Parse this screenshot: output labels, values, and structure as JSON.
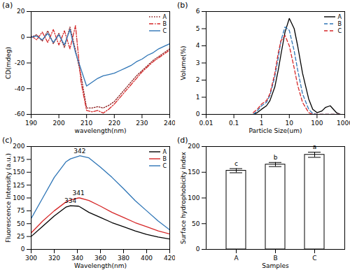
{
  "chart_data": [
    {
      "type": "line",
      "title": "(a)",
      "x_label": "wavelength(nm)",
      "y_label": "CD(mdeg)",
      "xlim": [
        190,
        240
      ],
      "xticks": [
        190,
        200,
        210,
        220,
        230,
        240
      ],
      "ylim": [
        -60,
        20
      ],
      "yticks": [
        -60,
        -40,
        -20,
        0,
        20
      ],
      "legend": "top-right",
      "x": [
        190,
        192,
        194,
        196,
        198,
        200,
        202,
        204,
        206,
        208,
        210,
        212,
        214,
        216,
        218,
        220,
        222,
        224,
        226,
        228,
        230,
        232,
        234,
        236,
        238,
        240
      ],
      "series": [
        {
          "name": "A",
          "color": "#8b1a1a",
          "line_style": "dotted",
          "values": [
            0,
            2,
            -3,
            5,
            -5,
            3,
            -8,
            8,
            -10,
            -30,
            -55,
            -55,
            -54,
            -55,
            -53,
            -50,
            -45,
            -40,
            -35,
            -30,
            -26,
            -22,
            -18,
            -15,
            -12,
            -9
          ]
        },
        {
          "name": "B",
          "color": "#d62728",
          "line_style": "dashdot",
          "values": [
            1,
            -2,
            4,
            -4,
            6,
            -6,
            5,
            -9,
            9,
            -35,
            -57,
            -58,
            -57,
            -59,
            -56,
            -52,
            -47,
            -42,
            -37,
            -32,
            -27,
            -23,
            -19,
            -16,
            -13,
            -10
          ]
        },
        {
          "name": "C",
          "color": "#2e75b6",
          "line_style": "solid",
          "values": [
            0,
            1,
            -2,
            3,
            -4,
            2,
            -6,
            6,
            -12,
            -25,
            -38,
            -35,
            -32,
            -30,
            -29,
            -28,
            -26,
            -24,
            -22,
            -19,
            -17,
            -14,
            -12,
            -9,
            -7,
            -5
          ]
        }
      ]
    },
    {
      "type": "line",
      "title": "(b)",
      "x_label": "Particle Size(um)",
      "y_label": "Volume(%)",
      "log": "x",
      "xlim": [
        0.01,
        1000
      ],
      "xticks": [
        0.01,
        0.1,
        1,
        10,
        100,
        1000
      ],
      "ylim": [
        0,
        6
      ],
      "yticks": [
        0,
        1,
        2,
        3,
        4,
        5,
        6
      ],
      "legend": "top-right",
      "x": [
        0.5,
        0.7,
        1,
        1.5,
        2,
        3,
        4,
        5,
        7,
        10,
        15,
        20,
        30,
        50,
        70,
        100,
        150,
        200,
        300,
        500,
        700
      ],
      "series": [
        {
          "name": "A",
          "color": "#000000",
          "line_style": "solid",
          "values": [
            0,
            0.1,
            0.3,
            0.5,
            0.8,
            1.6,
            2.6,
            3.5,
            4.8,
            5.6,
            5.0,
            4.0,
            2.4,
            0.9,
            0.3,
            0.1,
            0.2,
            0.4,
            0.5,
            0.1,
            0
          ]
        },
        {
          "name": "B",
          "color": "#2e75b6",
          "line_style": "dashed",
          "values": [
            0,
            0.2,
            0.5,
            0.7,
            1.1,
            2.2,
            3.3,
            4.3,
            5.1,
            4.9,
            3.7,
            2.6,
            1.2,
            0.3,
            0.05,
            0,
            0,
            0,
            0,
            0,
            0
          ]
        },
        {
          "name": "C",
          "color": "#d62728",
          "line_style": "dashed",
          "values": [
            0.1,
            0.3,
            0.6,
            0.8,
            1.2,
            2.4,
            3.6,
            4.3,
            4.6,
            4.0,
            2.7,
            1.7,
            0.7,
            0.1,
            0,
            0,
            0,
            0,
            0,
            0,
            0
          ]
        }
      ]
    },
    {
      "type": "line",
      "title": "(c)",
      "x_label": "Wavelength(nm)",
      "y_label": "Fluorescence Intensity (a.u.)",
      "xlim": [
        300,
        420
      ],
      "xticks": [
        300,
        320,
        340,
        360,
        380,
        400,
        420
      ],
      "ylim": [
        0,
        200
      ],
      "yticks": [
        0,
        25,
        50,
        75,
        100,
        125,
        150,
        175,
        200
      ],
      "legend": "top-right",
      "x": [
        300,
        310,
        320,
        330,
        334,
        341,
        342,
        350,
        360,
        370,
        380,
        390,
        400,
        410,
        420
      ],
      "series": [
        {
          "name": "A",
          "color": "#000000",
          "line_style": "solid",
          "values": [
            25,
            45,
            65,
            82,
            85,
            84,
            83,
            72,
            62,
            52,
            44,
            36,
            29,
            24,
            20
          ]
        },
        {
          "name": "B",
          "color": "#d62728",
          "line_style": "solid",
          "values": [
            32,
            55,
            75,
            92,
            96,
            100,
            100,
            95,
            84,
            72,
            62,
            52,
            44,
            36,
            30
          ]
        },
        {
          "name": "C",
          "color": "#2e75b6",
          "line_style": "solid",
          "values": [
            60,
            100,
            140,
            170,
            176,
            181,
            182,
            178,
            160,
            140,
            118,
            95,
            75,
            55,
            38
          ]
        }
      ],
      "annotations": [
        {
          "x": 342,
          "y": 182,
          "text": "342"
        },
        {
          "x": 341,
          "y": 100,
          "text": "341"
        },
        {
          "x": 334,
          "y": 85,
          "text": "334"
        }
      ]
    },
    {
      "type": "bar",
      "title": "(d)",
      "x_label": "Samples",
      "y_label": "Surface hydrophobicity index",
      "categories": [
        "A",
        "B",
        "C"
      ],
      "values": [
        153,
        165,
        184
      ],
      "errors": [
        4,
        4,
        5
      ],
      "annotations": [
        "c",
        "b",
        "a"
      ],
      "color": "#ffffff",
      "ylim": [
        0,
        200
      ],
      "yticks": [
        0,
        50,
        100,
        150,
        200
      ]
    }
  ]
}
